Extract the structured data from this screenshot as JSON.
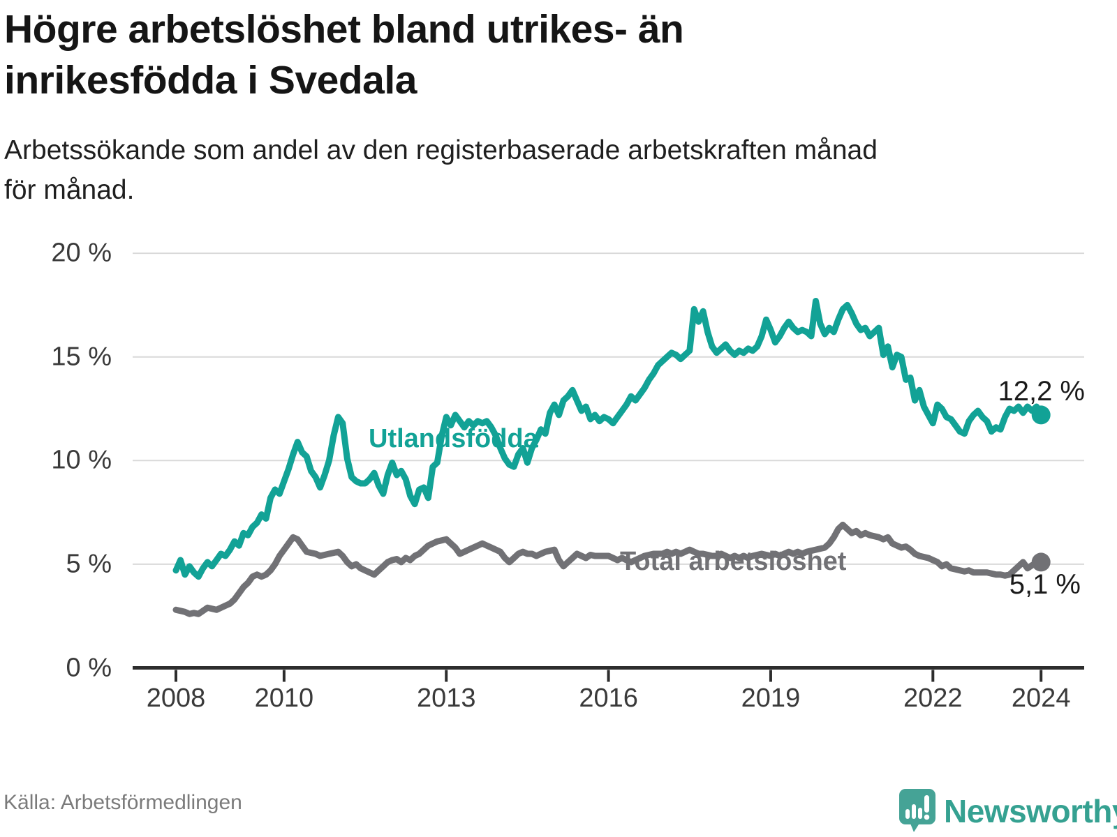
{
  "header": {
    "title": "Högre arbetslöshet bland utrikes- än\ninrikesfödda i Svedala",
    "subtitle": "Arbetssökande som andel av den registerbaserade arbetskraften månad\nför månad."
  },
  "footer": {
    "source": "Källa: Arbetsförmedlingen",
    "brand_name": "Newsworthy",
    "brand_icon": "bar-chart-speech-bubble-icon",
    "brand_color": "#45a396"
  },
  "colors": {
    "background": "#ffffff",
    "gridline": "#d9d9d9",
    "axis": "#2d2d2d",
    "tick_text": "#3a3a3a",
    "title_text": "#151515",
    "value_label_text": "#1a1a1a"
  },
  "chart_data": {
    "type": "line",
    "title": "Högre arbetslöshet bland utrikes- än inrikesfödda i Svedala",
    "subtitle": "Arbetssökande som andel av den registerbaserade arbetskraften månad för månad.",
    "x_axis": {
      "unit": "year (monthly data)",
      "start": 2008.0,
      "step_months": 1,
      "end": 2024.0,
      "ticks": [
        2008,
        2010,
        2013,
        2016,
        2019,
        2022,
        2024
      ],
      "tick_labels": [
        "2008",
        "2010",
        "2013",
        "2016",
        "2019",
        "2022",
        "2024"
      ]
    },
    "y_axis": {
      "unit": "%",
      "range": [
        0,
        20
      ],
      "ticks": [
        0,
        5,
        10,
        15,
        20
      ],
      "tick_labels": [
        "0 %",
        "5 %",
        "10 %",
        "15 %",
        "20 %"
      ],
      "gridlines": true
    },
    "legend_position": "inline-labels",
    "series": [
      {
        "name": "Utlandsfödda",
        "color": "#12a296",
        "end_value": 12.2,
        "end_label": "12,2 %",
        "values": [
          4.7,
          5.2,
          4.5,
          4.9,
          4.6,
          4.4,
          4.8,
          5.1,
          4.9,
          5.2,
          5.5,
          5.4,
          5.7,
          6.1,
          5.9,
          6.5,
          6.4,
          6.8,
          7.0,
          7.4,
          7.2,
          8.2,
          8.6,
          8.4,
          9.0,
          9.6,
          10.3,
          10.9,
          10.4,
          10.2,
          9.5,
          9.2,
          8.7,
          9.3,
          10.0,
          11.2,
          12.1,
          11.8,
          10.1,
          9.2,
          9.0,
          8.9,
          8.9,
          9.1,
          9.4,
          8.8,
          8.4,
          9.3,
          9.9,
          9.3,
          9.5,
          9.1,
          8.3,
          7.9,
          8.6,
          8.7,
          8.2,
          9.7,
          9.9,
          11.2,
          12.1,
          11.7,
          12.2,
          11.9,
          11.6,
          11.9,
          11.7,
          11.9,
          11.8,
          11.9,
          11.6,
          11.2,
          10.6,
          10.1,
          9.8,
          9.7,
          10.3,
          10.6,
          9.9,
          10.6,
          11.0,
          11.5,
          11.3,
          12.3,
          12.7,
          12.2,
          12.9,
          13.1,
          13.4,
          12.9,
          12.4,
          12.6,
          12.0,
          12.2,
          11.9,
          12.1,
          12.0,
          11.8,
          12.1,
          12.4,
          12.7,
          13.1,
          12.9,
          13.2,
          13.5,
          13.9,
          14.2,
          14.6,
          14.8,
          15.0,
          15.2,
          15.1,
          14.9,
          15.1,
          15.3,
          17.3,
          16.7,
          17.2,
          16.2,
          15.5,
          15.2,
          15.4,
          15.6,
          15.3,
          15.1,
          15.3,
          15.2,
          15.4,
          15.3,
          15.5,
          16.0,
          16.8,
          16.3,
          15.7,
          16.0,
          16.4,
          16.7,
          16.4,
          16.2,
          16.3,
          16.2,
          16.0,
          17.7,
          16.6,
          16.1,
          16.4,
          16.2,
          16.8,
          17.3,
          17.5,
          17.1,
          16.6,
          16.3,
          16.4,
          16.0,
          16.2,
          16.4,
          15.1,
          15.5,
          14.5,
          15.1,
          15.0,
          13.9,
          14.0,
          12.9,
          13.4,
          12.6,
          12.2,
          11.8,
          12.7,
          12.5,
          12.1,
          12.0,
          11.7,
          11.4,
          11.3,
          11.9,
          12.2,
          12.4,
          12.1,
          11.9,
          11.4,
          11.6,
          11.5,
          12.1,
          12.5,
          12.4,
          12.6,
          12.3,
          12.6,
          12.4,
          12.6,
          12.2
        ]
      },
      {
        "name": "Total arbetslöshet",
        "color": "#717175",
        "end_value": 5.1,
        "end_label": "5,1 %",
        "values": [
          2.8,
          2.75,
          2.7,
          2.6,
          2.65,
          2.6,
          2.75,
          2.9,
          2.85,
          2.8,
          2.9,
          3.0,
          3.1,
          3.3,
          3.6,
          3.9,
          4.1,
          4.4,
          4.5,
          4.4,
          4.5,
          4.7,
          5.0,
          5.4,
          5.7,
          6.0,
          6.3,
          6.2,
          5.9,
          5.6,
          5.55,
          5.5,
          5.4,
          5.45,
          5.5,
          5.55,
          5.6,
          5.4,
          5.1,
          4.9,
          5.0,
          4.8,
          4.7,
          4.6,
          4.5,
          4.7,
          4.9,
          5.1,
          5.2,
          5.25,
          5.1,
          5.3,
          5.2,
          5.4,
          5.5,
          5.7,
          5.9,
          6.0,
          6.1,
          6.15,
          6.2,
          6.0,
          5.8,
          5.5,
          5.6,
          5.7,
          5.8,
          5.9,
          6.0,
          5.9,
          5.8,
          5.7,
          5.6,
          5.3,
          5.1,
          5.3,
          5.5,
          5.6,
          5.5,
          5.5,
          5.4,
          5.5,
          5.6,
          5.65,
          5.7,
          5.2,
          4.9,
          5.1,
          5.3,
          5.5,
          5.4,
          5.3,
          5.45,
          5.4,
          5.4,
          5.4,
          5.4,
          5.3,
          5.2,
          5.3,
          5.2,
          5.1,
          5.2,
          5.3,
          5.4,
          5.45,
          5.5,
          5.5,
          5.5,
          5.6,
          5.5,
          5.6,
          5.5,
          5.6,
          5.7,
          5.6,
          5.5,
          5.5,
          5.45,
          5.4,
          5.4,
          5.5,
          5.4,
          5.3,
          5.4,
          5.3,
          5.4,
          5.3,
          5.4,
          5.45,
          5.5,
          5.45,
          5.4,
          5.5,
          5.4,
          5.5,
          5.6,
          5.5,
          5.6,
          5.5,
          5.6,
          5.65,
          5.7,
          5.75,
          5.8,
          6.0,
          6.3,
          6.7,
          6.9,
          6.7,
          6.5,
          6.6,
          6.4,
          6.5,
          6.4,
          6.35,
          6.3,
          6.2,
          6.3,
          6.0,
          5.9,
          5.8,
          5.85,
          5.7,
          5.5,
          5.4,
          5.35,
          5.3,
          5.2,
          5.1,
          4.9,
          5.0,
          4.8,
          4.75,
          4.7,
          4.65,
          4.7,
          4.6,
          4.6,
          4.6,
          4.6,
          4.55,
          4.5,
          4.5,
          4.45,
          4.5,
          4.7,
          4.9,
          5.1,
          4.8,
          4.95,
          5.05,
          5.1
        ]
      }
    ]
  }
}
